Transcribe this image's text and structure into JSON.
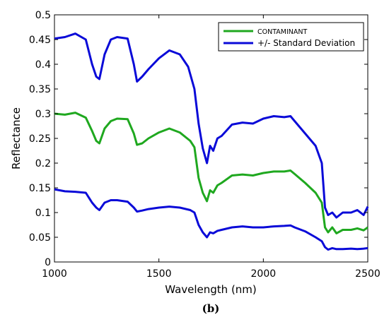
{
  "chart_data": {
    "type": "line",
    "title": "",
    "xlabel": "Wavelength (nm)",
    "ylabel": "Reflectance",
    "xlim": [
      1000,
      2500
    ],
    "ylim": [
      0,
      0.5
    ],
    "xticks": [
      1000,
      1500,
      2000,
      2500
    ],
    "yticks": [
      0,
      0.05,
      0.1,
      0.15,
      0.2,
      0.25,
      0.3,
      0.35,
      0.4,
      0.45,
      0.5
    ],
    "xtick_labels": [
      "1000",
      "1500",
      "2000",
      "2500"
    ],
    "ytick_labels": [
      "0",
      "0.05",
      "0.1",
      "0.15",
      "0.2",
      "0.25",
      "0.3",
      "0.35",
      "0.4",
      "0.45",
      "0.5"
    ],
    "grid": false,
    "legend_placement": "top-right",
    "panel_label": "(b)",
    "series": [
      {
        "name": "CONTAMINANT",
        "color": "#1fa81f",
        "points": [
          [
            1000,
            0.3
          ],
          [
            1050,
            0.298
          ],
          [
            1100,
            0.302
          ],
          [
            1150,
            0.292
          ],
          [
            1180,
            0.265
          ],
          [
            1200,
            0.245
          ],
          [
            1215,
            0.24
          ],
          [
            1240,
            0.27
          ],
          [
            1270,
            0.285
          ],
          [
            1300,
            0.29
          ],
          [
            1350,
            0.289
          ],
          [
            1380,
            0.26
          ],
          [
            1395,
            0.237
          ],
          [
            1420,
            0.24
          ],
          [
            1450,
            0.25
          ],
          [
            1500,
            0.262
          ],
          [
            1550,
            0.27
          ],
          [
            1600,
            0.262
          ],
          [
            1650,
            0.245
          ],
          [
            1670,
            0.232
          ],
          [
            1690,
            0.17
          ],
          [
            1710,
            0.14
          ],
          [
            1730,
            0.123
          ],
          [
            1745,
            0.145
          ],
          [
            1760,
            0.14
          ],
          [
            1780,
            0.155
          ],
          [
            1800,
            0.16
          ],
          [
            1850,
            0.175
          ],
          [
            1900,
            0.177
          ],
          [
            1950,
            0.175
          ],
          [
            2000,
            0.18
          ],
          [
            2050,
            0.183
          ],
          [
            2100,
            0.183
          ],
          [
            2130,
            0.185
          ],
          [
            2150,
            0.178
          ],
          [
            2200,
            0.16
          ],
          [
            2250,
            0.14
          ],
          [
            2280,
            0.12
          ],
          [
            2295,
            0.07
          ],
          [
            2310,
            0.06
          ],
          [
            2330,
            0.07
          ],
          [
            2350,
            0.058
          ],
          [
            2380,
            0.065
          ],
          [
            2420,
            0.065
          ],
          [
            2450,
            0.068
          ],
          [
            2480,
            0.064
          ],
          [
            2500,
            0.07
          ]
        ]
      },
      {
        "name": "+/- Standard Deviation",
        "color": "#0a0ad8",
        "points": [
          [
            1000,
            0.452
          ],
          [
            1050,
            0.455
          ],
          [
            1100,
            0.462
          ],
          [
            1150,
            0.45
          ],
          [
            1180,
            0.4
          ],
          [
            1200,
            0.375
          ],
          [
            1215,
            0.37
          ],
          [
            1240,
            0.42
          ],
          [
            1270,
            0.45
          ],
          [
            1300,
            0.455
          ],
          [
            1350,
            0.452
          ],
          [
            1380,
            0.4
          ],
          [
            1395,
            0.365
          ],
          [
            1420,
            0.375
          ],
          [
            1450,
            0.39
          ],
          [
            1500,
            0.412
          ],
          [
            1550,
            0.428
          ],
          [
            1600,
            0.42
          ],
          [
            1640,
            0.395
          ],
          [
            1670,
            0.35
          ],
          [
            1690,
            0.28
          ],
          [
            1710,
            0.23
          ],
          [
            1730,
            0.2
          ],
          [
            1745,
            0.235
          ],
          [
            1760,
            0.225
          ],
          [
            1780,
            0.25
          ],
          [
            1800,
            0.255
          ],
          [
            1850,
            0.278
          ],
          [
            1900,
            0.282
          ],
          [
            1950,
            0.28
          ],
          [
            2000,
            0.29
          ],
          [
            2050,
            0.295
          ],
          [
            2100,
            0.293
          ],
          [
            2130,
            0.295
          ],
          [
            2150,
            0.285
          ],
          [
            2200,
            0.26
          ],
          [
            2250,
            0.235
          ],
          [
            2280,
            0.2
          ],
          [
            2295,
            0.11
          ],
          [
            2310,
            0.095
          ],
          [
            2330,
            0.1
          ],
          [
            2350,
            0.09
          ],
          [
            2380,
            0.1
          ],
          [
            2420,
            0.1
          ],
          [
            2450,
            0.105
          ],
          [
            2480,
            0.095
          ],
          [
            2500,
            0.112
          ]
        ]
      },
      {
        "name": "",
        "color": "#0a0ad8",
        "points": [
          [
            1000,
            0.147
          ],
          [
            1050,
            0.143
          ],
          [
            1100,
            0.142
          ],
          [
            1150,
            0.14
          ],
          [
            1180,
            0.12
          ],
          [
            1200,
            0.11
          ],
          [
            1215,
            0.105
          ],
          [
            1240,
            0.12
          ],
          [
            1270,
            0.125
          ],
          [
            1300,
            0.125
          ],
          [
            1350,
            0.122
          ],
          [
            1380,
            0.11
          ],
          [
            1395,
            0.102
          ],
          [
            1420,
            0.104
          ],
          [
            1450,
            0.107
          ],
          [
            1500,
            0.11
          ],
          [
            1550,
            0.112
          ],
          [
            1600,
            0.11
          ],
          [
            1650,
            0.105
          ],
          [
            1670,
            0.1
          ],
          [
            1690,
            0.075
          ],
          [
            1710,
            0.06
          ],
          [
            1730,
            0.05
          ],
          [
            1745,
            0.06
          ],
          [
            1760,
            0.058
          ],
          [
            1780,
            0.063
          ],
          [
            1800,
            0.065
          ],
          [
            1850,
            0.07
          ],
          [
            1900,
            0.072
          ],
          [
            1950,
            0.07
          ],
          [
            2000,
            0.07
          ],
          [
            2050,
            0.072
          ],
          [
            2100,
            0.073
          ],
          [
            2130,
            0.074
          ],
          [
            2150,
            0.07
          ],
          [
            2200,
            0.062
          ],
          [
            2250,
            0.05
          ],
          [
            2280,
            0.042
          ],
          [
            2295,
            0.03
          ],
          [
            2310,
            0.025
          ],
          [
            2330,
            0.028
          ],
          [
            2350,
            0.026
          ],
          [
            2380,
            0.026
          ],
          [
            2420,
            0.027
          ],
          [
            2450,
            0.026
          ],
          [
            2480,
            0.027
          ],
          [
            2500,
            0.028
          ]
        ]
      }
    ]
  },
  "legend": {
    "entries": [
      {
        "label": "CONTAMINANT",
        "color": "#1fa81f"
      },
      {
        "label": "+/- Standard Deviation",
        "color": "#0a0ad8"
      }
    ]
  }
}
